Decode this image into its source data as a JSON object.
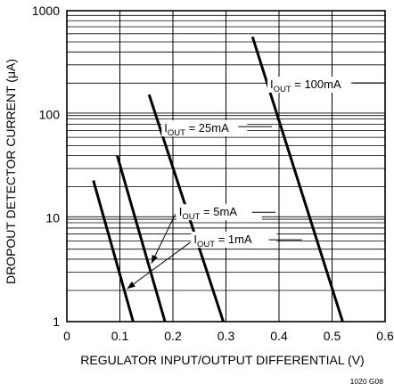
{
  "chart_data": {
    "type": "line",
    "title": "",
    "xlabel": "REGULATOR INPUT/OUTPUT DIFFERENTIAL (V)",
    "ylabel": "DROPOUT DETECTOR CURRENT (μA)",
    "xlim": [
      0,
      0.6
    ],
    "ylim": [
      1,
      1000
    ],
    "yscale": "log",
    "grid": true,
    "legend": "none",
    "x_ticks": [
      {
        "value": 0,
        "label": "0"
      },
      {
        "value": 0.1,
        "label": "0.1"
      },
      {
        "value": 0.2,
        "label": "0.2"
      },
      {
        "value": 0.3,
        "label": "0.3"
      },
      {
        "value": 0.4,
        "label": "0.4"
      },
      {
        "value": 0.5,
        "label": "0.5"
      },
      {
        "value": 0.6,
        "label": "0.6"
      }
    ],
    "y_ticks": [
      {
        "value": 1,
        "label": "1"
      },
      {
        "value": 10,
        "label": "10"
      },
      {
        "value": 100,
        "label": "100"
      },
      {
        "value": 1000,
        "label": "1000"
      }
    ],
    "series": [
      {
        "name_main": "I",
        "name_sub": "OUT",
        "name_rest": " = 1mA",
        "x": [
          0.05,
          0.125
        ],
        "y": [
          23,
          1
        ]
      },
      {
        "name_main": "I",
        "name_sub": "OUT",
        "name_rest": " = 5mA",
        "x": [
          0.095,
          0.185
        ],
        "y": [
          40,
          1
        ]
      },
      {
        "name_main": "I",
        "name_sub": "OUT",
        "name_rest": " = 25mA",
        "x": [
          0.155,
          0.295
        ],
        "y": [
          155,
          1
        ]
      },
      {
        "name_main": "I",
        "name_sub": "OUT",
        "name_rest": " = 100mA",
        "x": [
          0.35,
          0.52
        ],
        "y": [
          560,
          1
        ]
      }
    ],
    "figure_id": "1020 G08"
  }
}
